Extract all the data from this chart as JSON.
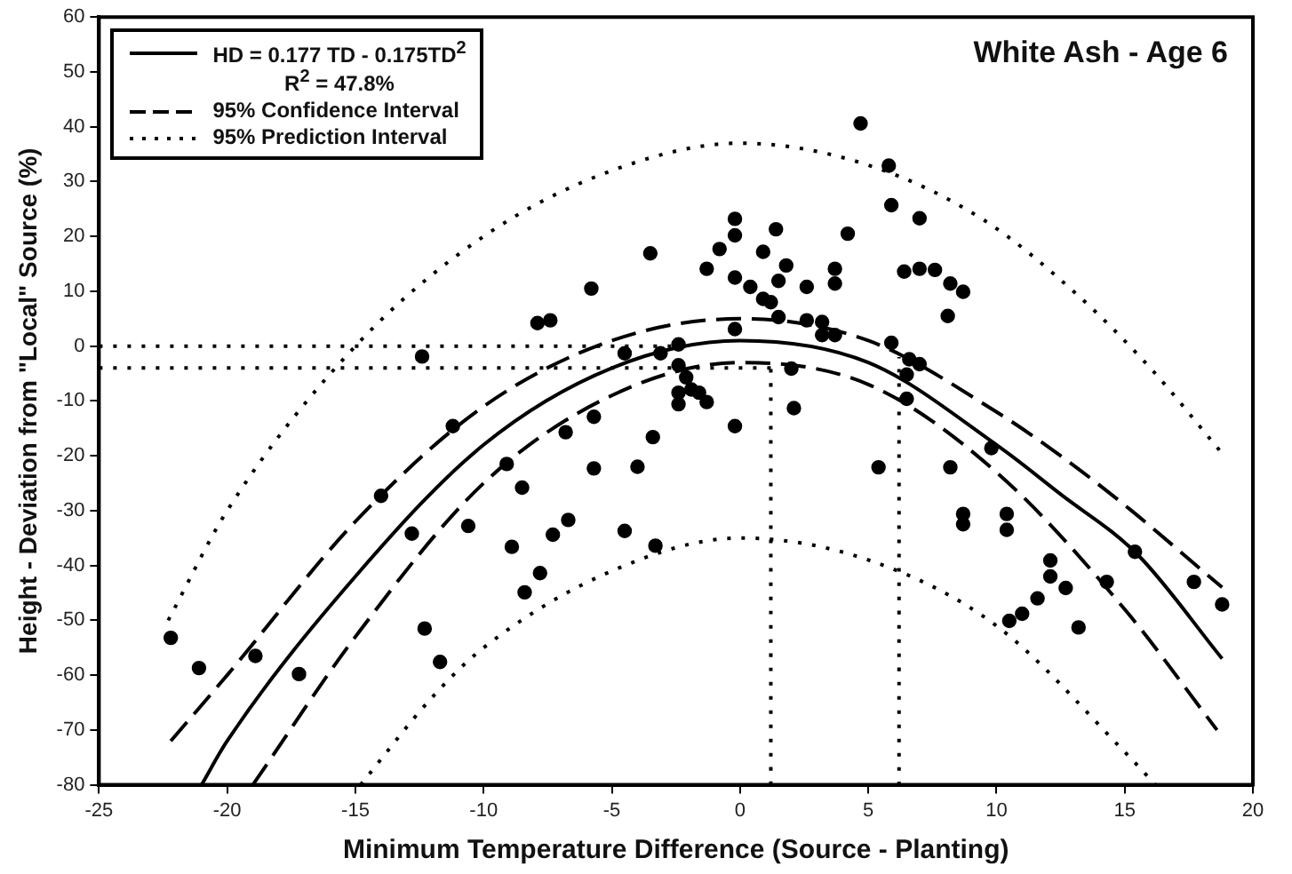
{
  "chart_data": {
    "type": "scatter",
    "title": "White Ash - Age 6",
    "xlabel": "Minimum Temperature Difference (Source - Planting)",
    "ylabel": "Height - Deviation from \"Local\" Source (%)",
    "xlim": [
      -25,
      20
    ],
    "ylim": [
      -80,
      60
    ],
    "xticks": [
      -25,
      -20,
      -15,
      -10,
      -5,
      0,
      5,
      10,
      15,
      20
    ],
    "yticks": [
      -80,
      -70,
      -60,
      -50,
      -40,
      -30,
      -20,
      -10,
      0,
      10,
      20,
      30,
      40,
      50,
      60
    ],
    "grid": false,
    "legend": "top left",
    "marker": "circle",
    "series": [
      {
        "color": "#000000",
        "x": [
          -22.2,
          -21.1,
          -18.9,
          -17.2,
          -14.0,
          -12.8,
          -12.3,
          -11.7,
          -11.2,
          -10.6,
          -9.1,
          -8.5,
          -8.9,
          -8.4,
          -7.8,
          -7.3,
          -6.7,
          -6.8,
          -5.7,
          -5.7,
          -4.0,
          -3.4,
          -4.5,
          -3.3,
          -2.4,
          -2.4,
          -12.4,
          -7.9,
          -7.4,
          -5.8,
          -3.5,
          -4.5,
          -3.1,
          -2.4,
          4.7,
          5.8,
          5.9,
          7.0,
          4.2,
          -0.2,
          -0.2,
          1.4,
          -0.8,
          0.9,
          1.8,
          -1.3,
          -0.2,
          0.4,
          1.5,
          2.6,
          3.7,
          3.7,
          6.4,
          7.0,
          7.6,
          8.2,
          8.7,
          8.1,
          0.9,
          1.2,
          1.5,
          2.6,
          3.2,
          3.7,
          -0.2,
          5.9,
          6.6,
          7.0,
          6.5,
          2.1,
          -2.1,
          -1.6,
          -1.3,
          3.2,
          -2.4,
          -0.2,
          -1.9,
          2.0,
          5.4,
          8.2,
          6.5,
          9.8,
          8.7,
          8.7,
          10.4,
          10.4,
          12.1,
          12.1,
          12.7,
          11.6,
          11.0,
          10.5,
          13.2,
          14.3,
          15.4,
          17.7,
          18.8
        ],
        "values": [
          -53.2,
          -58.7,
          -56.5,
          -59.8,
          -27.3,
          -34.2,
          -51.5,
          -57.6,
          -14.6,
          -32.8,
          -21.5,
          -25.8,
          -36.6,
          -44.9,
          -41.4,
          -34.4,
          -31.7,
          -15.7,
          -12.9,
          -22.3,
          -22.0,
          -16.6,
          -33.7,
          -36.4,
          -10.6,
          -8.5,
          -1.9,
          4.2,
          4.7,
          10.5,
          16.9,
          -1.3,
          -1.3,
          0.3,
          40.6,
          32.9,
          25.7,
          23.3,
          20.5,
          23.2,
          20.2,
          21.3,
          17.7,
          17.2,
          14.7,
          14.1,
          12.5,
          10.8,
          11.9,
          10.8,
          14.1,
          11.4,
          13.6,
          14.1,
          13.9,
          11.4,
          9.9,
          5.5,
          8.6,
          8.0,
          5.3,
          4.7,
          4.4,
          2.0,
          3.1,
          0.6,
          -2.4,
          -3.3,
          -5.2,
          -11.3,
          -5.7,
          -8.5,
          -10.2,
          2.0,
          -3.5,
          -14.6,
          -7.9,
          -4.1,
          -22.1,
          -22.1,
          -9.6,
          -18.6,
          -30.6,
          -32.5,
          -30.6,
          -33.5,
          -39.1,
          -42.0,
          -44.1,
          -46.0,
          -48.8,
          -50.1,
          -51.3,
          -43.0,
          -37.5,
          -43.0,
          -47.1
        ]
      },
      {
        "type": "line",
        "name": "HD = 0.177 TD - 0.175TD$^{2}$\nR$^{2}$ = 47.8%",
        "color": "#000000",
        "marker": "none",
        "line_style": "solid",
        "x": [
          -21,
          -20,
          -15,
          -10,
          -5,
          0,
          5,
          10,
          12.5,
          15.5,
          18.8
        ],
        "values": [
          -80,
          -72,
          -42,
          -18,
          -4,
          1,
          -3,
          -18,
          -27,
          -38,
          -57
        ]
      },
      {
        "type": "line",
        "name": "95% Confidence Interval",
        "color": "#000000",
        "marker": "none",
        "line_style": "dashed",
        "x": [
          -22.2,
          -20,
          -15,
          -10,
          -5,
          0,
          5,
          10,
          12.5,
          15,
          18.8
        ],
        "values": [
          -72,
          -60,
          -32,
          -11,
          1,
          5,
          1,
          -12,
          -20,
          -29,
          -44
        ]
      },
      {
        "type": "line",
        "color": "#000000",
        "marker": "none",
        "line_style": "dashed",
        "x": [
          -19,
          -15,
          -10,
          -5,
          0,
          5,
          10,
          15,
          18.6
        ],
        "values": [
          -80,
          -53,
          -25,
          -9,
          -3,
          -7,
          -23,
          -48,
          -70
        ]
      },
      {
        "type": "line",
        "name": "95% Prediction Interval",
        "color": "#000000",
        "marker": "none",
        "line_style": "dotted",
        "x": [
          -22.3,
          -20,
          -15,
          -10,
          -5,
          0,
          5,
          9.5,
          13,
          16,
          18.7
        ],
        "values": [
          -50,
          -30,
          0,
          20,
          32,
          37,
          33,
          23,
          10,
          -4,
          -19
        ]
      },
      {
        "type": "line",
        "color": "#000000",
        "marker": "none",
        "line_style": "dotted",
        "x": [
          -14.8,
          -12,
          -10,
          -5,
          0,
          5,
          10,
          15,
          16.2
        ],
        "values": [
          -80,
          -64,
          -55,
          -41,
          -35,
          -39,
          -51,
          -74,
          -80
        ]
      },
      {
        "type": "line",
        "color": "#000000",
        "marker": "none",
        "line_style": "dotted",
        "x": [
          -25,
          -2
        ],
        "values": [
          0,
          0
        ]
      },
      {
        "type": "line",
        "color": "#000000",
        "marker": "none",
        "line_style": "dotted",
        "x": [
          -25,
          1.2
        ],
        "values": [
          -4,
          -4
        ]
      },
      {
        "type": "line",
        "color": "#000000",
        "marker": "none",
        "line_style": "dotted",
        "x": [
          1.2,
          1.2
        ],
        "values": [
          -80,
          -4
        ]
      },
      {
        "type": "line",
        "color": "#000000",
        "marker": "none",
        "line_style": "dotted",
        "x": [
          6.2,
          6.2
        ],
        "values": [
          -80,
          -2
        ]
      }
    ]
  }
}
